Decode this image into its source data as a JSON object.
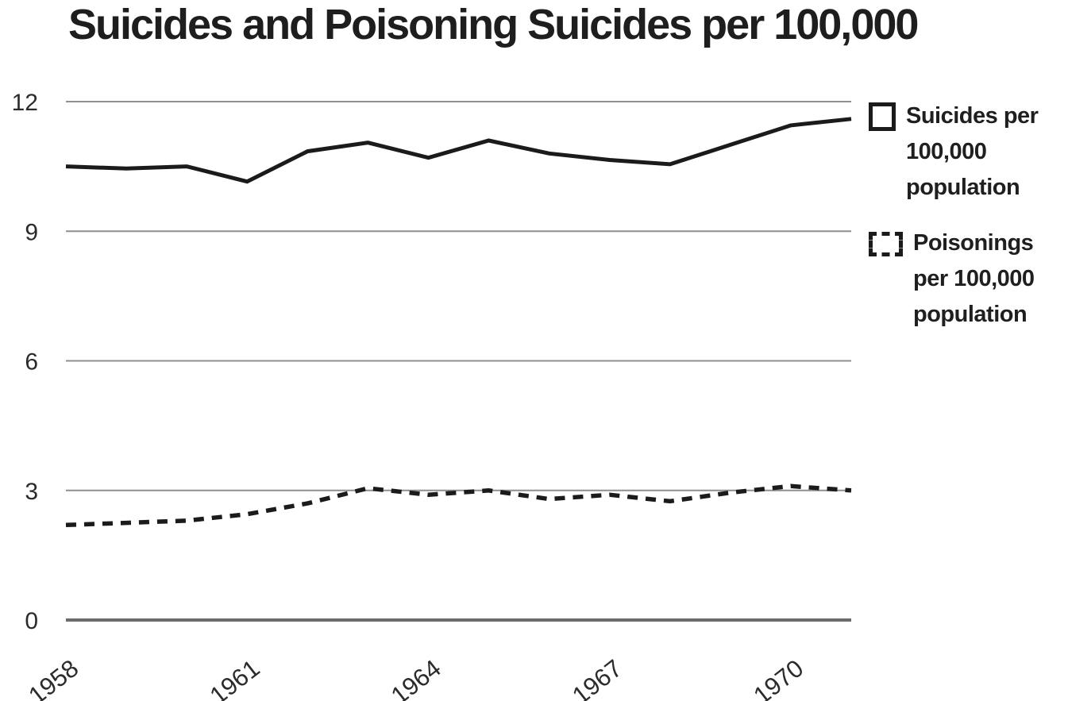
{
  "chart_data": {
    "type": "line",
    "title": "Suicides and Poisoning Suicides per 100,000",
    "x": [
      1958,
      1959,
      1960,
      1961,
      1962,
      1963,
      1964,
      1965,
      1966,
      1967,
      1968,
      1969,
      1970,
      1971
    ],
    "series": [
      {
        "name": "Suicides per 100,000 population",
        "style": "solid",
        "values": [
          10.5,
          10.45,
          10.5,
          10.15,
          10.85,
          11.05,
          10.7,
          11.1,
          10.8,
          10.65,
          10.55,
          11.0,
          11.45,
          11.6
        ]
      },
      {
        "name": "Poisonings per 100,000 population",
        "style": "dashed",
        "values": [
          2.2,
          2.25,
          2.3,
          2.45,
          2.7,
          3.05,
          2.9,
          3.0,
          2.8,
          2.9,
          2.75,
          2.95,
          3.1,
          3.0
        ]
      }
    ],
    "x_ticks": [
      1958,
      1961,
      1964,
      1967,
      1970
    ],
    "y_ticks": [
      0,
      3,
      6,
      9,
      12
    ],
    "ylim": [
      0,
      12
    ],
    "x_range": [
      1958,
      1971
    ],
    "grid": true,
    "legend_position": "right",
    "colors": {
      "line": "#1b1b1b",
      "gridline": "#8f8f8f",
      "axis": "#6b6b6b",
      "text": "#2b2b2b",
      "background": "#ffffff"
    }
  }
}
